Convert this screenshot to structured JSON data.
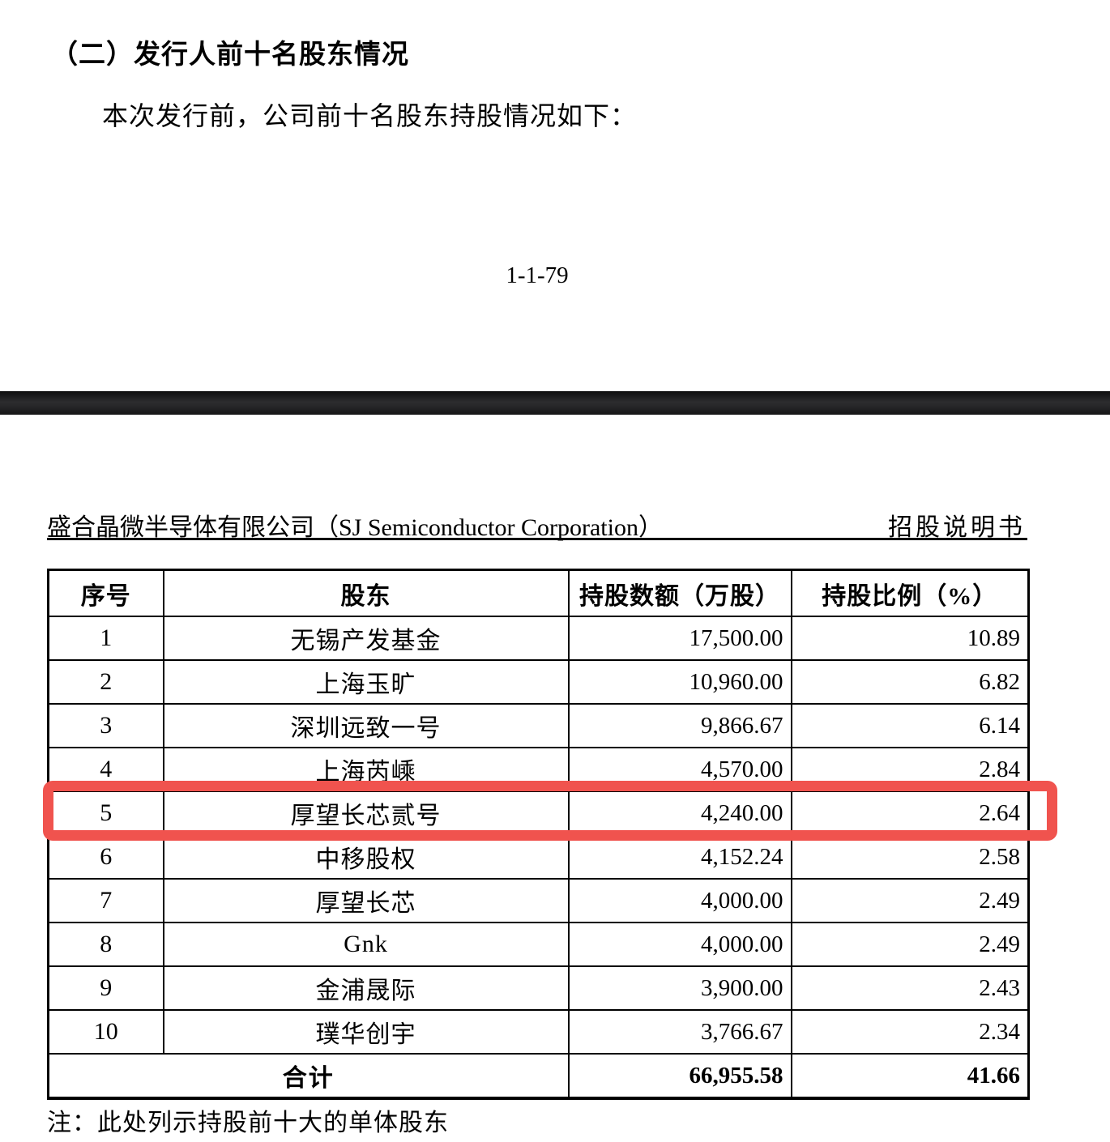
{
  "document": {
    "section_heading": "（二）发行人前十名股东情况",
    "intro_text": "本次发行前，公司前十名股东持股情况如下：",
    "page_number": "1-1-79",
    "page_header": {
      "company": "盛合晶微半导体有限公司（SJ Semiconductor Corporation）",
      "doc_type": "招股说明书"
    },
    "footnote": "注：此处列示持股前十大的单体股东"
  },
  "table": {
    "columns": [
      "序号",
      "股东",
      "持股数额（万股）",
      "持股比例（%）"
    ],
    "rows": [
      {
        "no": "1",
        "name": "无锡产发基金",
        "shares": "17,500.00",
        "ratio": "10.89"
      },
      {
        "no": "2",
        "name": "上海玉旷",
        "shares": "10,960.00",
        "ratio": "6.82"
      },
      {
        "no": "3",
        "name": "深圳远致一号",
        "shares": "9,866.67",
        "ratio": "6.14"
      },
      {
        "no": "4",
        "name": "上海芮嵊",
        "shares": "4,570.00",
        "ratio": "2.84"
      },
      {
        "no": "5",
        "name": "厚望长芯贰号",
        "shares": "4,240.00",
        "ratio": "2.64"
      },
      {
        "no": "6",
        "name": "中移股权",
        "shares": "4,152.24",
        "ratio": "2.58"
      },
      {
        "no": "7",
        "name": "厚望长芯",
        "shares": "4,000.00",
        "ratio": "2.49"
      },
      {
        "no": "8",
        "name": "Gnk",
        "shares": "4,000.00",
        "ratio": "2.49"
      },
      {
        "no": "9",
        "name": "金浦晟际",
        "shares": "3,900.00",
        "ratio": "2.43"
      },
      {
        "no": "10",
        "name": "璞华创宇",
        "shares": "3,766.67",
        "ratio": "2.34"
      }
    ],
    "total": {
      "label": "合计",
      "shares": "66,955.58",
      "ratio": "41.66"
    },
    "highlight": {
      "row": 5,
      "color": "#f0534e"
    }
  }
}
